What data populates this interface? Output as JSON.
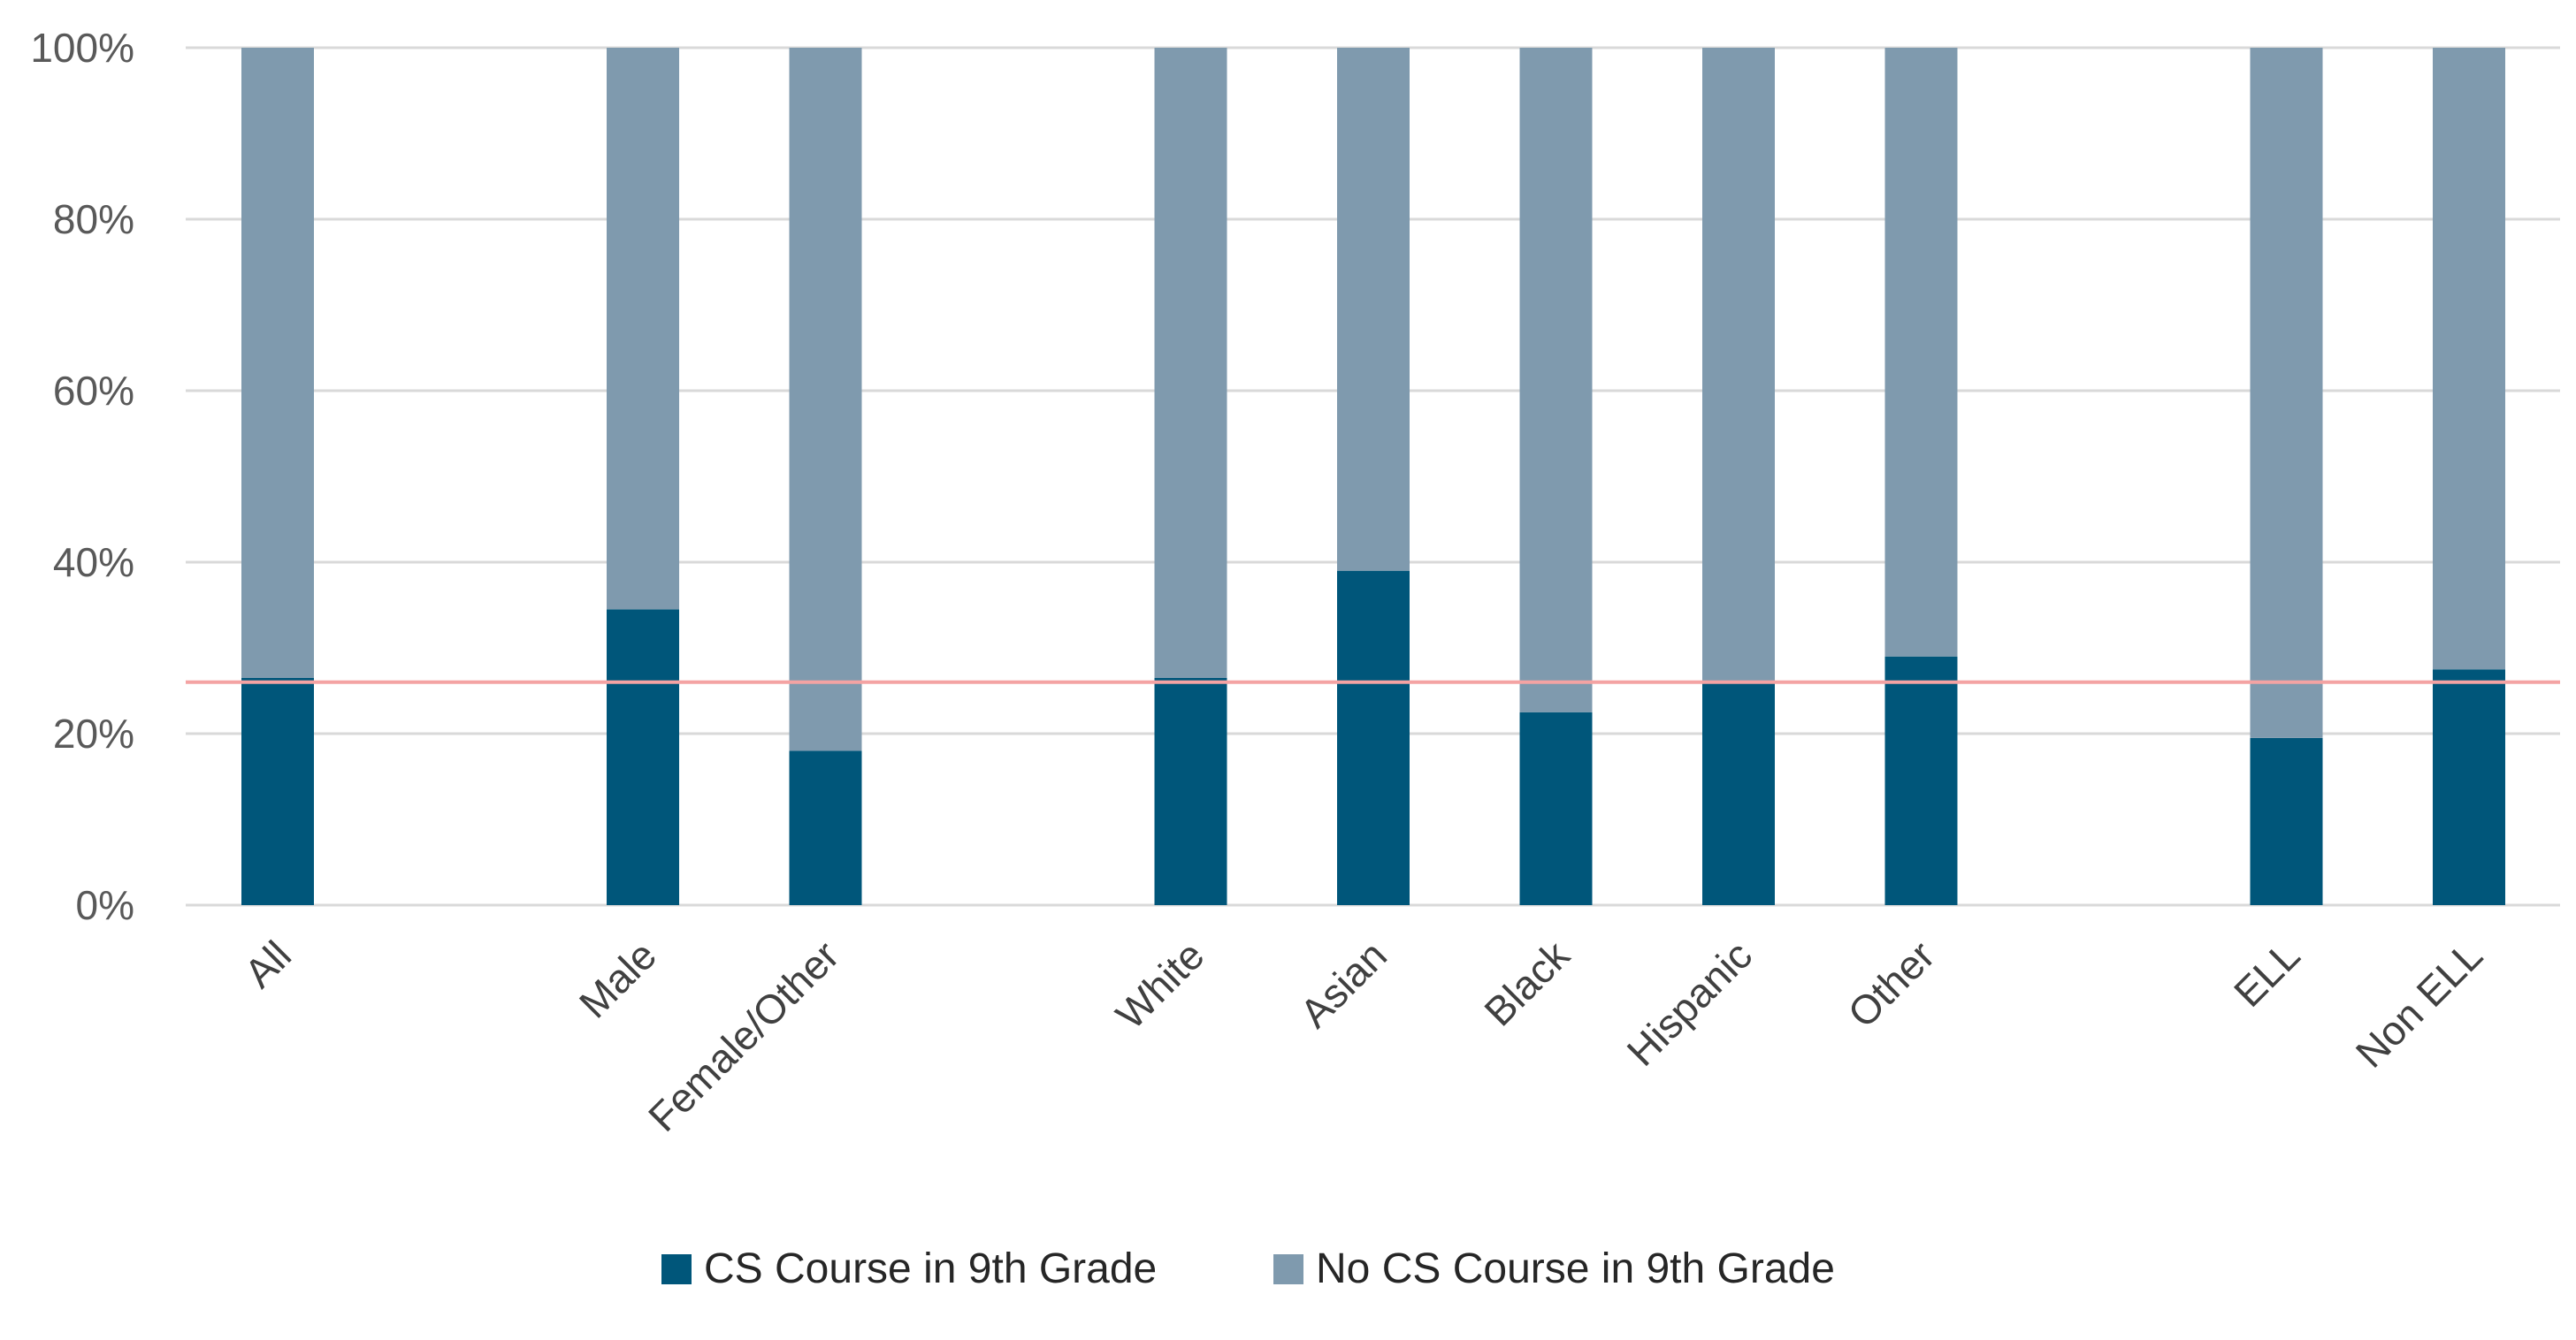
{
  "chart_data": {
    "type": "bar",
    "stacked": true,
    "percent_stacked": true,
    "title": "",
    "xlabel": "",
    "ylabel": "",
    "ylim": [
      0,
      100
    ],
    "yticks": [
      "0%",
      "20%",
      "40%",
      "60%",
      "80%",
      "100%"
    ],
    "grid": true,
    "legend_position": "bottom",
    "categories": [
      "All",
      "Male",
      "Female/Other",
      "White",
      "Asian",
      "Black",
      "Hispanic",
      "Other",
      "ELL",
      "Non ELL"
    ],
    "category_groups": [
      [
        "All"
      ],
      [
        "Male",
        "Female/Other"
      ],
      [
        "White",
        "Asian",
        "Black",
        "Hispanic",
        "Other"
      ],
      [
        "ELL",
        "Non ELL"
      ]
    ],
    "series": [
      {
        "name": "CS Course in 9th Grade",
        "color": "#00567A",
        "values": [
          26.5,
          34.5,
          18,
          26.5,
          39,
          22.5,
          26,
          29,
          19.5,
          27.5
        ]
      },
      {
        "name": "No CS Course in 9th Grade",
        "color": "#7F9AAE",
        "values": [
          73.5,
          65.5,
          82,
          73.5,
          61,
          77.5,
          74,
          71,
          80.5,
          72.5
        ]
      }
    ],
    "reference_line": {
      "value": 26,
      "color": "#F4A3A3"
    }
  }
}
